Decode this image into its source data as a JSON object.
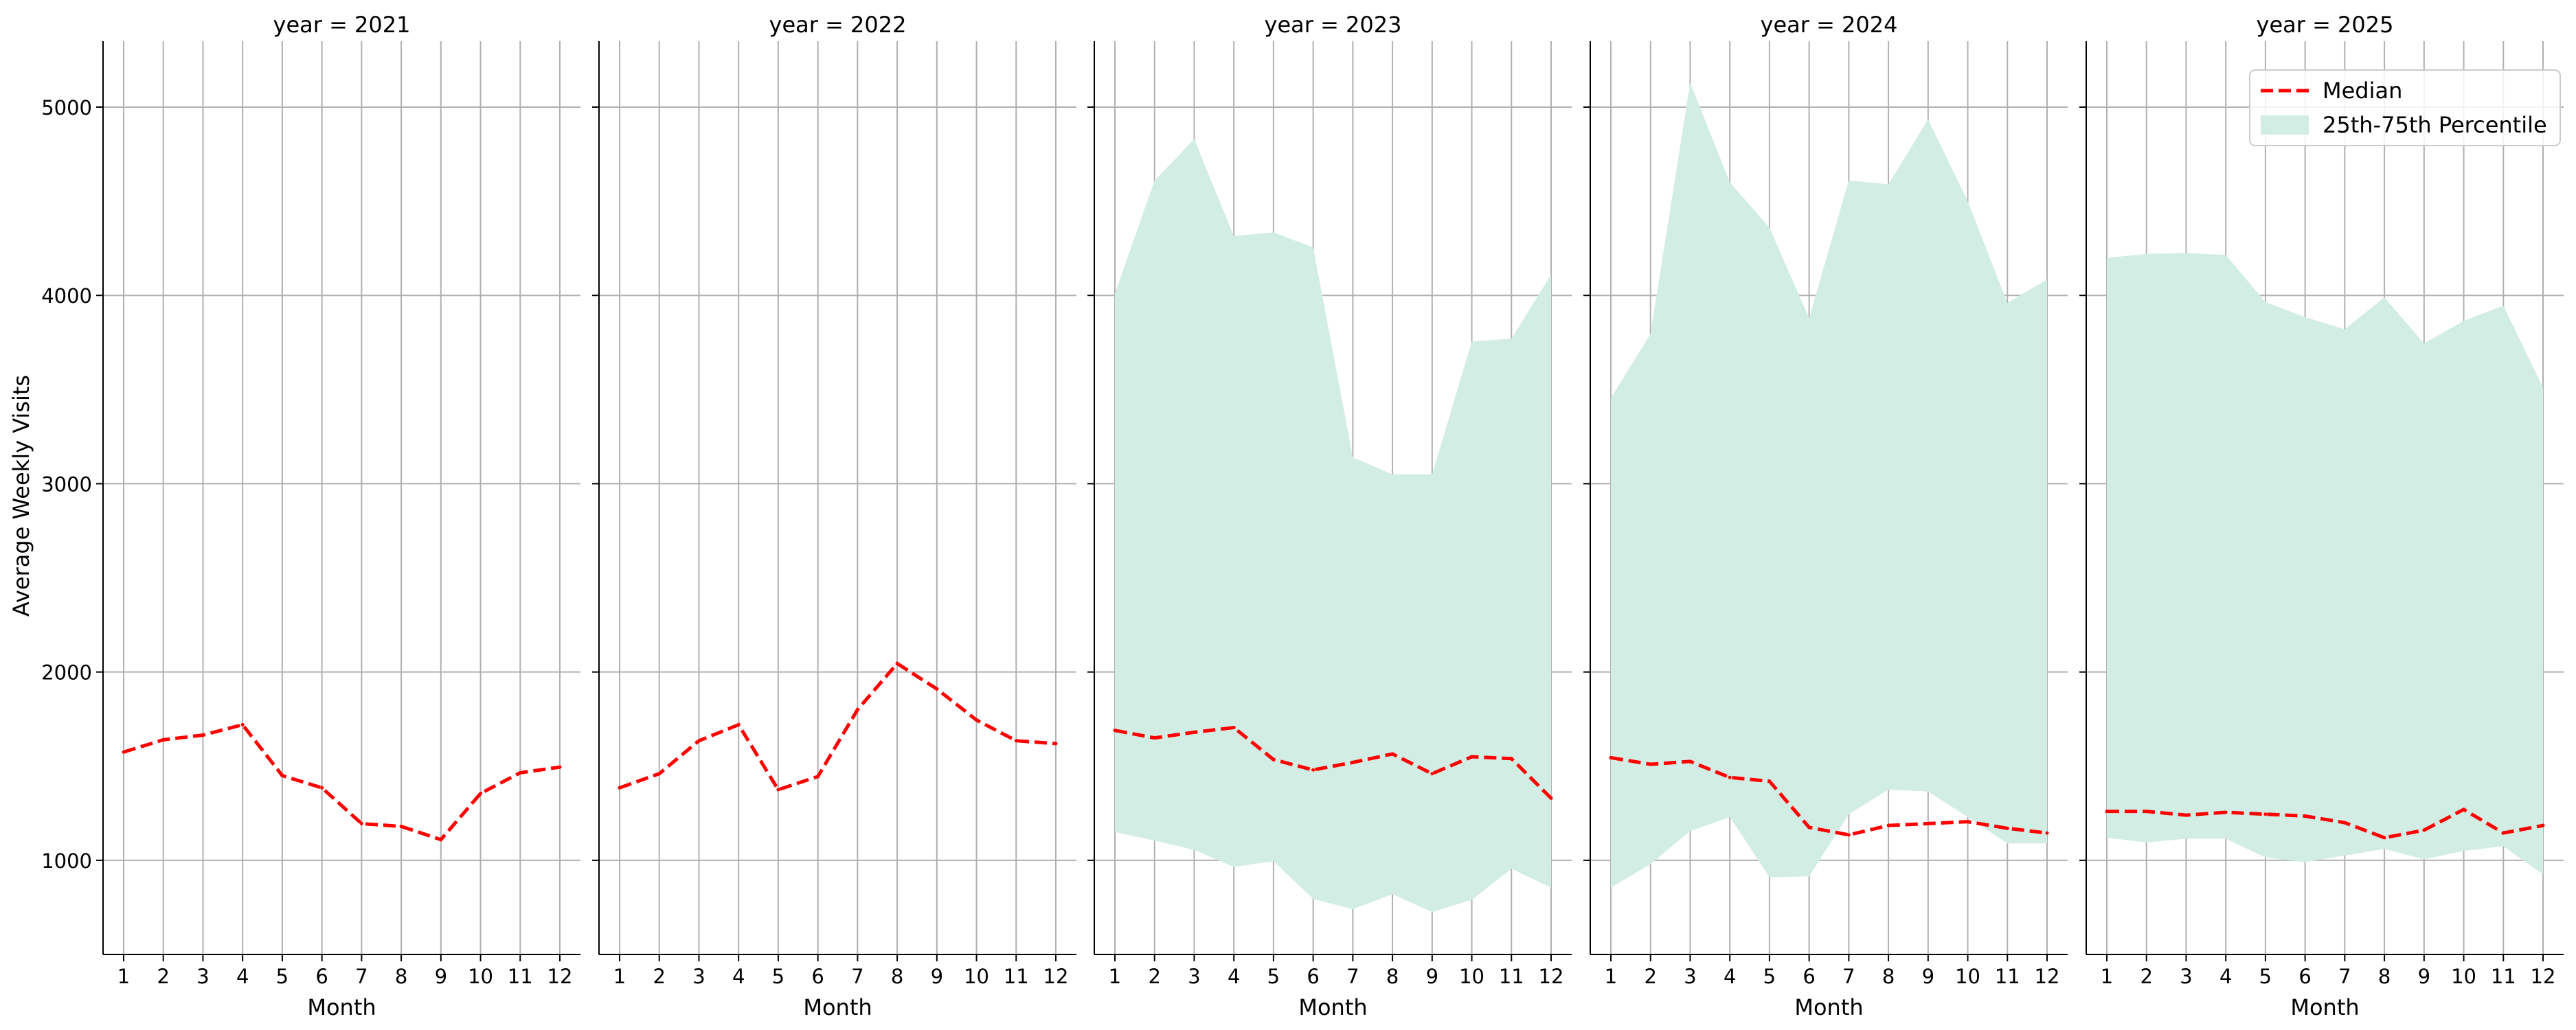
{
  "chart_data": {
    "type": "line",
    "ylabel": "Average Weekly Visits",
    "xlabel": "Month",
    "ylim": [
      500,
      5350
    ],
    "y_ticks": [
      1000,
      2000,
      3000,
      4000,
      5000
    ],
    "x": [
      1,
      2,
      3,
      4,
      5,
      6,
      7,
      8,
      9,
      10,
      11,
      12
    ],
    "grid": true,
    "colors": {
      "median": "#ff0000",
      "band": "#d2ede4"
    },
    "legend": {
      "placement": "top-right",
      "entries": [
        {
          "label": "Median",
          "style": "dashed-line"
        },
        {
          "label": "25th-75th Percentile",
          "style": "fill"
        }
      ]
    },
    "panels": [
      {
        "title": "year = 2021",
        "median": [
          1575,
          1640,
          1665,
          1720,
          1450,
          1385,
          1195,
          1180,
          1110,
          1355,
          1465,
          1495
        ],
        "p25": null,
        "p75": null
      },
      {
        "title": "year = 2022",
        "median": [
          1385,
          1460,
          1635,
          1720,
          1375,
          1445,
          1800,
          2045,
          1910,
          1745,
          1635,
          1620
        ],
        "p25": null,
        "p75": null
      },
      {
        "title": "year = 2023",
        "median": [
          1690,
          1650,
          1680,
          1705,
          1535,
          1480,
          1520,
          1565,
          1460,
          1550,
          1540,
          1330
        ],
        "p25": [
          1150,
          1105,
          1055,
          965,
          995,
          795,
          740,
          820,
          725,
          790,
          955,
          855
        ],
        "p75": [
          4010,
          4610,
          4830,
          4315,
          4335,
          4255,
          3140,
          3050,
          3050,
          3755,
          3770,
          4110
        ]
      },
      {
        "title": "year = 2024",
        "median": [
          1545,
          1510,
          1525,
          1440,
          1420,
          1175,
          1135,
          1185,
          1195,
          1205,
          1170,
          1145
        ],
        "p25": [
          855,
          980,
          1155,
          1230,
          910,
          915,
          1245,
          1375,
          1365,
          1230,
          1090,
          1090
        ],
        "p75": [
          3455,
          3795,
          5130,
          4600,
          4360,
          3880,
          4610,
          4590,
          4935,
          4500,
          3960,
          4085
        ]
      },
      {
        "title": "year = 2025",
        "median": [
          1260,
          1260,
          1240,
          1255,
          1245,
          1235,
          1200,
          1120,
          1160,
          1270,
          1145,
          1185
        ],
        "p25": [
          1120,
          1095,
          1115,
          1115,
          1015,
          990,
          1025,
          1060,
          1005,
          1050,
          1075,
          925
        ],
        "p75": [
          4200,
          4220,
          4225,
          4215,
          3965,
          3885,
          3820,
          3990,
          3745,
          3865,
          3945,
          3510
        ]
      }
    ]
  }
}
